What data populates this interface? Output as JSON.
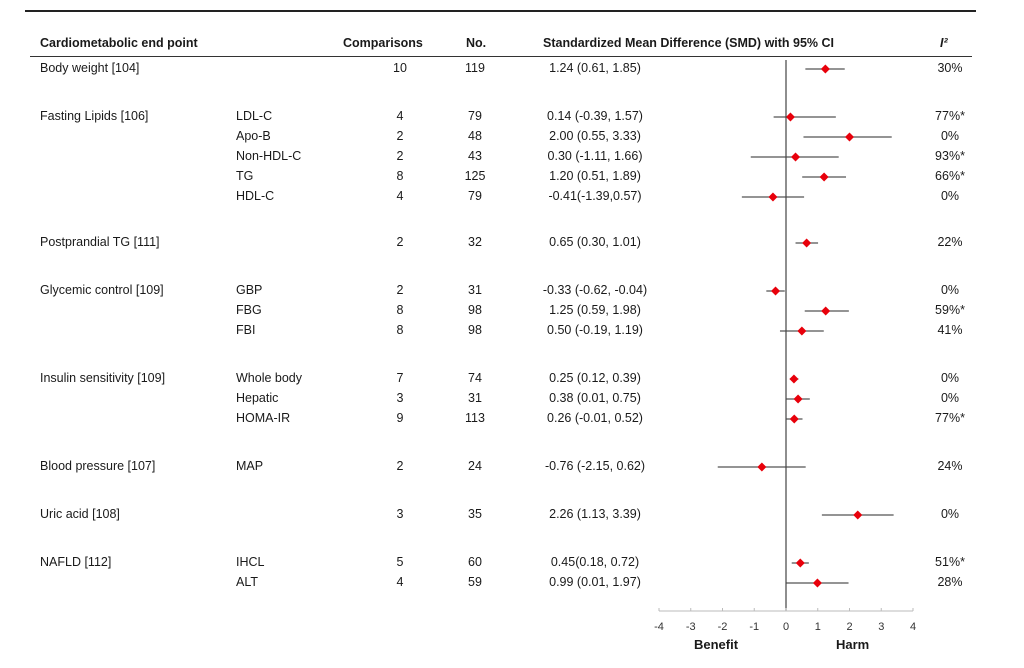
{
  "chart_data": {
    "type": "forest",
    "title": "",
    "columns": {
      "endpoint": "Cardiometabolic end point",
      "comparisons": "Comparisons",
      "n": "No.",
      "smd": "Standardized Mean Difference (SMD) with 95% CI",
      "i2": "I²"
    },
    "xlim": [
      -4,
      4
    ],
    "xticks": [
      "-4",
      "-3",
      "-2",
      "-1",
      "0",
      "1",
      "2",
      "3",
      "4"
    ],
    "xtick_values": [
      -4,
      -3,
      -2,
      -1,
      0,
      1,
      2,
      3,
      4
    ],
    "xlabel_left": "Benefit",
    "xlabel_right": "Harm",
    "marker_color": "#e8000b",
    "ci_color": "#555555",
    "rows": [
      {
        "endpoint": "Body weight [104]",
        "sub": "",
        "comparisons": "10",
        "n": "119",
        "smd_text": "1.24 (0.61, 1.85)",
        "est": 1.24,
        "lo": 0.61,
        "hi": 1.85,
        "i2": "30%"
      },
      {
        "endpoint": "Fasting Lipids [106]",
        "sub": "LDL-C",
        "comparisons": "4",
        "n": "79",
        "smd_text": "0.14 (-0.39, 1.57)",
        "est": 0.14,
        "lo": -0.39,
        "hi": 1.57,
        "i2": "77%*"
      },
      {
        "endpoint": "",
        "sub": "Apo-B",
        "comparisons": "2",
        "n": "48",
        "smd_text": "2.00 (0.55, 3.33)",
        "est": 2.0,
        "lo": 0.55,
        "hi": 3.33,
        "i2": "0%"
      },
      {
        "endpoint": "",
        "sub": "Non-HDL-C",
        "comparisons": "2",
        "n": "43",
        "smd_text": "0.30 (-1.11, 1.66)",
        "est": 0.3,
        "lo": -1.11,
        "hi": 1.66,
        "i2": "93%*"
      },
      {
        "endpoint": "",
        "sub": "TG",
        "comparisons": "8",
        "n": "125",
        "smd_text": "1.20 (0.51, 1.89)",
        "est": 1.2,
        "lo": 0.51,
        "hi": 1.89,
        "i2": "66%*"
      },
      {
        "endpoint": "",
        "sub": "HDL-C",
        "comparisons": "4",
        "n": "79",
        "smd_text": "-0.41(-1.39,0.57)",
        "est": -0.41,
        "lo": -1.39,
        "hi": 0.57,
        "i2": "0%"
      },
      {
        "endpoint": "Postprandial TG [111]",
        "sub": "",
        "comparisons": "2",
        "n": "32",
        "smd_text": "0.65 (0.30, 1.01)",
        "est": 0.65,
        "lo": 0.3,
        "hi": 1.01,
        "i2": "22%"
      },
      {
        "endpoint": "Glycemic control [109]",
        "sub": "GBP",
        "comparisons": "2",
        "n": "31",
        "smd_text": "-0.33 (-0.62, -0.04)",
        "est": -0.33,
        "lo": -0.62,
        "hi": -0.04,
        "i2": "0%"
      },
      {
        "endpoint": "",
        "sub": "FBG",
        "comparisons": "8",
        "n": "98",
        "smd_text": "1.25 (0.59, 1.98)",
        "est": 1.25,
        "lo": 0.59,
        "hi": 1.98,
        "i2": "59%*"
      },
      {
        "endpoint": "",
        "sub": "FBI",
        "comparisons": "8",
        "n": "98",
        "smd_text": "0.50 (-0.19, 1.19)",
        "est": 0.5,
        "lo": -0.19,
        "hi": 1.19,
        "i2": "41%"
      },
      {
        "endpoint": "Insulin sensitivity [109]",
        "sub": "Whole body",
        "comparisons": "7",
        "n": "74",
        "smd_text": "0.25 (0.12, 0.39)",
        "est": 0.25,
        "lo": 0.12,
        "hi": 0.39,
        "i2": "0%"
      },
      {
        "endpoint": "",
        "sub": "Hepatic",
        "comparisons": "3",
        "n": "31",
        "smd_text": "0.38 (0.01, 0.75)",
        "est": 0.38,
        "lo": 0.01,
        "hi": 0.75,
        "i2": "0%"
      },
      {
        "endpoint": "",
        "sub": "HOMA-IR",
        "comparisons": "9",
        "n": "113",
        "smd_text": "0.26 (-0.01, 0.52)",
        "est": 0.26,
        "lo": -0.01,
        "hi": 0.52,
        "i2": "77%*"
      },
      {
        "endpoint": "Blood pressure [107]",
        "sub": "MAP",
        "comparisons": "2",
        "n": "24",
        "smd_text": "-0.76 (-2.15, 0.62)",
        "est": -0.76,
        "lo": -2.15,
        "hi": 0.62,
        "i2": "24%"
      },
      {
        "endpoint": "Uric acid [108]",
        "sub": "",
        "comparisons": "3",
        "n": "35",
        "smd_text": "2.26 (1.13, 3.39)",
        "est": 2.26,
        "lo": 1.13,
        "hi": 3.39,
        "i2": "0%"
      },
      {
        "endpoint": "NAFLD [112]",
        "sub": "IHCL",
        "comparisons": "5",
        "n": "60",
        "smd_text": "0.45(0.18, 0.72)",
        "est": 0.45,
        "lo": 0.18,
        "hi": 0.72,
        "i2": "51%*"
      },
      {
        "endpoint": "",
        "sub": "ALT",
        "comparisons": "4",
        "n": "59",
        "smd_text": "0.99 (0.01, 1.97)",
        "est": 0.99,
        "lo": 0.01,
        "hi": 1.97,
        "i2": "28%"
      }
    ]
  }
}
